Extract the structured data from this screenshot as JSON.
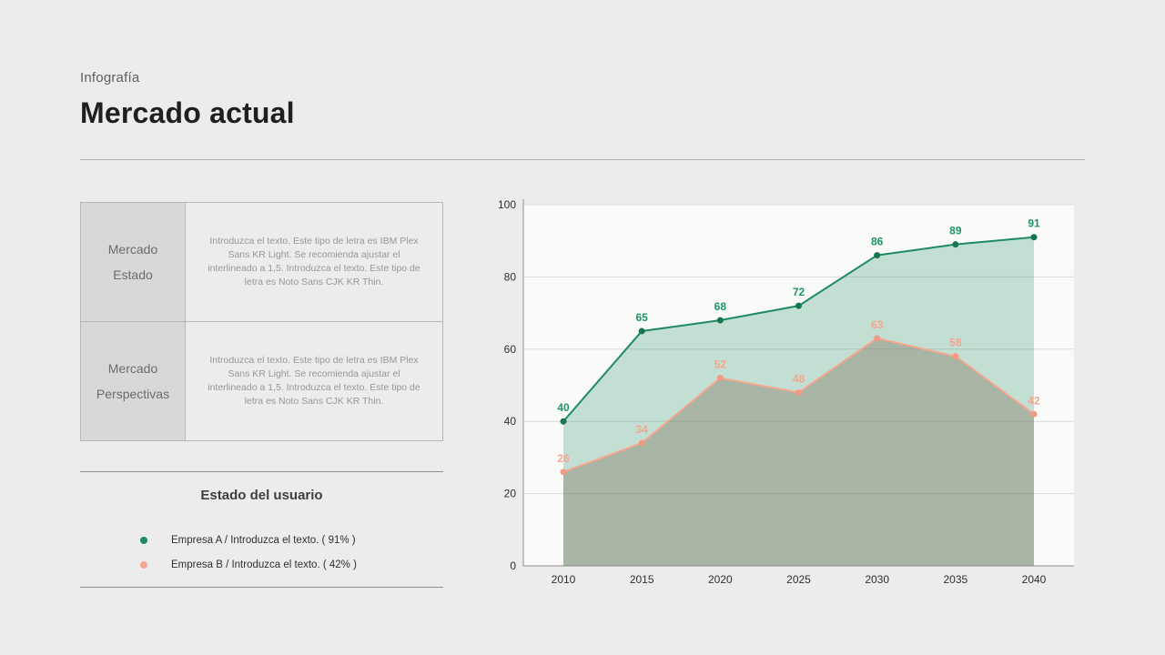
{
  "page": {
    "eyebrow": "Infografía",
    "title": "Mercado actual"
  },
  "info_table": {
    "rows": [
      {
        "label_line1": "Mercado",
        "label_line2": "Estado",
        "body": "Introduzca el texto. Este tipo de letra es IBM Plex Sans KR Light. Se recomienda ajustar el interlineado a 1,5. Introduzca el texto. Este tipo de letra es Noto Sans CJK KR Thin."
      },
      {
        "label_line1": "Mercado",
        "label_line2": "Perspectivas",
        "body": "Introduzca el texto. Este tipo de letra es IBM Plex Sans KR Light. Se recomienda ajustar el interlineado a 1,5. Introduzca el texto. Este tipo de letra es Noto Sans CJK KR Thin."
      }
    ]
  },
  "legend": {
    "title": "Estado del usuario",
    "items": [
      {
        "label": "Empresa A / Introduzca el texto. ( 91% )",
        "color": "#1e8a63"
      },
      {
        "label": "Empresa B / Introduzca el texto. ( 42% )",
        "color": "#f4a68f"
      }
    ]
  },
  "chart_data": {
    "type": "area",
    "x": [
      "2010",
      "2015",
      "2020",
      "2025",
      "2030",
      "2035",
      "2040"
    ],
    "series": [
      {
        "name": "Empresa A",
        "values": [
          40,
          65,
          68,
          72,
          86,
          89,
          91
        ],
        "color": "#1e8a63",
        "point_color": "#17764f",
        "fill": "rgba(30, 138, 99, 0.25)",
        "label_color": "#1e9468"
      },
      {
        "name": "Empresa B",
        "values": [
          26,
          34,
          52,
          48,
          63,
          58,
          42
        ],
        "color": "#f4a68f",
        "point_color": "#f29b82",
        "fill": "rgba(128, 117, 94, 0.40)",
        "label_color": "#f4a68f"
      }
    ],
    "title": "",
    "xlabel": "",
    "ylabel": "",
    "ylim": [
      0,
      100
    ],
    "yticks": [
      0,
      20,
      40,
      60,
      80,
      100
    ],
    "grid": true,
    "legend_position": "left-panel"
  }
}
